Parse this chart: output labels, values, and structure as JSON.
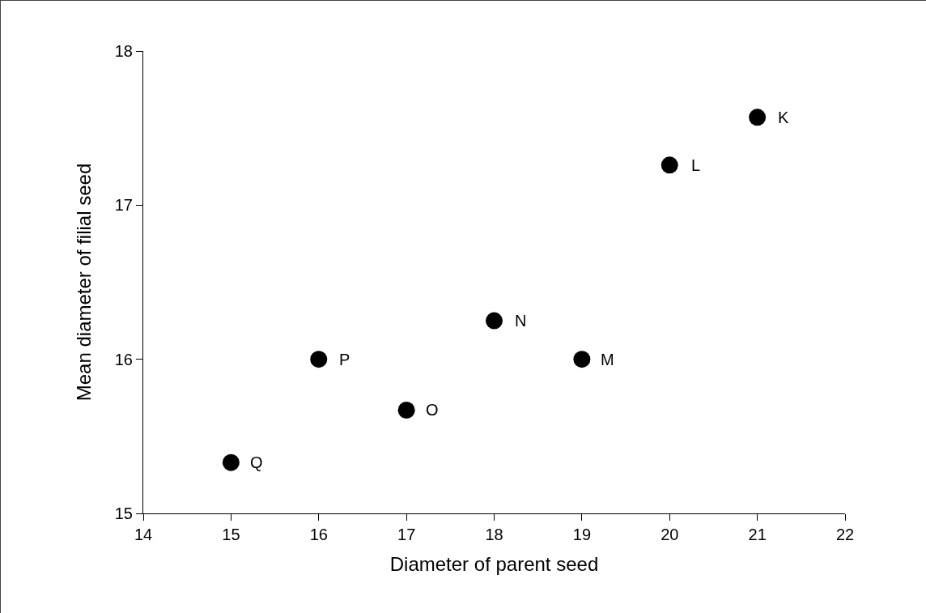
{
  "chart_data": {
    "type": "scatter",
    "xlabel": "Diameter of parent seed",
    "ylabel": "Mean diameter of filial seed",
    "x": [
      21,
      20,
      19,
      18,
      17,
      16,
      15
    ],
    "values": [
      17.57,
      17.26,
      16.0,
      16.25,
      15.67,
      16.0,
      15.33
    ],
    "color": "#000000",
    "marker": "circle",
    "grid": false,
    "legend": false,
    "xlim": [
      14,
      22
    ],
    "xticks": [
      14,
      15,
      16,
      17,
      18,
      19,
      20,
      21,
      22
    ],
    "ylim": [
      15,
      18
    ],
    "yticks": [
      15,
      16,
      17,
      18
    ],
    "annotations": [
      {
        "text": "K",
        "x": 21,
        "y": 17.57
      },
      {
        "text": "L",
        "x": 20,
        "y": 17.26
      },
      {
        "text": "M",
        "x": 19,
        "y": 16.0
      },
      {
        "text": "N",
        "x": 18,
        "y": 16.25
      },
      {
        "text": "O",
        "x": 17,
        "y": 15.67
      },
      {
        "text": "P",
        "x": 16,
        "y": 16.0
      },
      {
        "text": "Q",
        "x": 15,
        "y": 15.33
      }
    ]
  }
}
